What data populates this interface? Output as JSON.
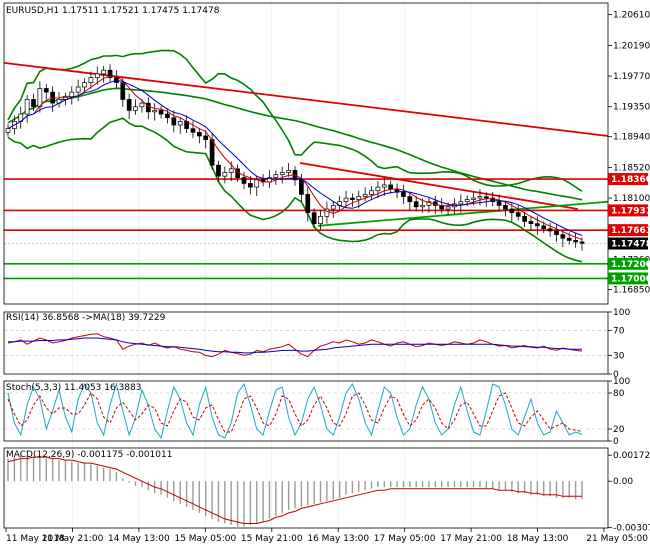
{
  "chart_data": [
    {
      "type": "candlestick",
      "panel": "price",
      "title": "EURUSD,H1  1.17511 1.17521 1.17475 1.17478",
      "ylim": [
        1.1665,
        1.2077
      ],
      "y_ticks": [
        "1.20610",
        "1.20190",
        "1.19770",
        "1.19350",
        "1.18940",
        "1.18520",
        "1.18100",
        "1.17680",
        "1.17260",
        "1.16850"
      ],
      "y_tick_values": [
        1.2061,
        1.2019,
        1.1977,
        1.1935,
        1.1894,
        1.1852,
        1.181,
        1.1768,
        1.1726,
        1.1685
      ],
      "current_price": {
        "label": "1.17478",
        "value": 1.17478,
        "color": "#000000"
      },
      "horizontal_levels": [
        {
          "label": "1.18360",
          "value": 1.1836,
          "color": "#e00000"
        },
        {
          "label": "1.17931",
          "value": 1.17931,
          "color": "#e00000"
        },
        {
          "label": "1.17661",
          "value": 1.17661,
          "color": "#e00000"
        },
        {
          "label": "1.17200",
          "value": 1.172,
          "color": "#00a000"
        },
        {
          "label": "1.17000",
          "value": 1.17,
          "color": "#00a000"
        }
      ],
      "close_series": [
        1.1905,
        1.1915,
        1.1925,
        1.1945,
        1.1935,
        1.196,
        1.1955,
        1.194,
        1.1945,
        1.1948,
        1.1955,
        1.1962,
        1.1968,
        1.1975,
        1.198,
        1.1985,
        1.1975,
        1.1968,
        1.1945,
        1.193,
        1.1935,
        1.194,
        1.1928,
        1.193,
        1.1925,
        1.192,
        1.191,
        1.1915,
        1.1905,
        1.19,
        1.1895,
        1.189,
        1.1855,
        1.184,
        1.1845,
        1.185,
        1.1838,
        1.183,
        1.1825,
        1.1835,
        1.1832,
        1.1838,
        1.1842,
        1.1845,
        1.1848,
        1.1835,
        1.1815,
        1.179,
        1.1775,
        1.1785,
        1.1795,
        1.18,
        1.1805,
        1.181,
        1.1808,
        1.1812,
        1.1815,
        1.182,
        1.1825,
        1.1828,
        1.1822,
        1.1818,
        1.1812,
        1.1805,
        1.1798,
        1.18,
        1.1805,
        1.18,
        1.1795,
        1.1798,
        1.1802,
        1.1805,
        1.1808,
        1.181,
        1.1812,
        1.181,
        1.1805,
        1.18,
        1.1795,
        1.179,
        1.1785,
        1.1778,
        1.1775,
        1.1772,
        1.1768,
        1.1765,
        1.176,
        1.1755,
        1.1752,
        1.175,
        1.1748
      ],
      "x_ticks": [
        "11 May 2018",
        "11 May 21:00",
        "14 May 13:00",
        "15 May 05:00",
        "15 May 21:00",
        "16 May 13:00",
        "17 May 05:00",
        "17 May 21:00",
        "18 May 13:00",
        "21 May 05:00"
      ],
      "trend_lines": [
        {
          "from": [
            0,
            1.1995
          ],
          "to": [
            1,
            1.1895
          ],
          "color": "#e00000"
        },
        {
          "from": [
            0.49,
            1.1858
          ],
          "to": [
            0.95,
            1.1795
          ],
          "color": "#e00000"
        },
        {
          "from": [
            0.52,
            1.1772
          ],
          "to": [
            1,
            1.1805
          ],
          "color": "#00a000"
        }
      ]
    },
    {
      "type": "line",
      "panel": "rsi",
      "title": "RSI(14) 36.8568  ->MA(18) 39.7229",
      "ylim": [
        0,
        100
      ],
      "y_ticks": [
        "100",
        "70",
        "30",
        "0"
      ],
      "y_tick_values": [
        100,
        70,
        30,
        0
      ],
      "series": [
        {
          "name": "RSI(14)",
          "color": "#c00000",
          "values": [
            50,
            52,
            55,
            48,
            53,
            58,
            55,
            50,
            52,
            54,
            58,
            60,
            62,
            64,
            65,
            60,
            58,
            55,
            40,
            45,
            48,
            50,
            46,
            50,
            45,
            42,
            44,
            40,
            38,
            36,
            35,
            30,
            28,
            32,
            38,
            35,
            33,
            30,
            32,
            38,
            36,
            40,
            42,
            44,
            48,
            40,
            32,
            28,
            38,
            45,
            48,
            52,
            50,
            55,
            52,
            48,
            50,
            55,
            52,
            48,
            45,
            50,
            52,
            48,
            44,
            46,
            50,
            48,
            46,
            48,
            52,
            50,
            48,
            50,
            55,
            52,
            48,
            45,
            46,
            42,
            44,
            46,
            43,
            42,
            45,
            40,
            38,
            42,
            40,
            38,
            37
          ]
        },
        {
          "name": "MA(18)",
          "color": "#0000c0",
          "values": [
            52,
            52,
            53,
            53,
            53,
            54,
            54,
            54,
            55,
            55,
            56,
            57,
            58,
            58,
            58,
            57,
            56,
            55,
            52,
            50,
            49,
            48,
            47,
            46,
            45,
            44,
            44,
            43,
            42,
            41,
            40,
            38,
            37,
            36,
            36,
            35,
            35,
            34,
            34,
            35,
            35,
            36,
            37,
            38,
            38,
            38,
            37,
            37,
            38,
            39,
            40,
            42,
            43,
            44,
            45,
            46,
            47,
            48,
            48,
            48,
            48,
            48,
            48,
            48,
            48,
            48,
            48,
            48,
            48,
            48,
            48,
            48,
            48,
            48,
            48,
            48,
            48,
            47,
            46,
            45,
            45,
            44,
            44,
            43,
            43,
            42,
            41,
            41,
            40,
            40,
            40
          ]
        }
      ]
    },
    {
      "type": "line",
      "panel": "stochastic",
      "title": "Stoch(5,3,3) 11.4053 16.3883",
      "ylim": [
        0,
        100
      ],
      "y_ticks": [
        "100",
        "80",
        "20",
        "0"
      ],
      "y_tick_values": [
        100,
        80,
        20,
        0
      ],
      "series": [
        {
          "name": "Stoch main",
          "color": "#1aa7c9",
          "values": [
            80,
            30,
            10,
            60,
            90,
            70,
            20,
            50,
            85,
            40,
            15,
            70,
            95,
            80,
            30,
            10,
            60,
            95,
            50,
            10,
            40,
            85,
            60,
            20,
            5,
            50,
            90,
            70,
            30,
            10,
            60,
            90,
            40,
            10,
            5,
            30,
            80,
            95,
            60,
            20,
            10,
            50,
            85,
            90,
            40,
            10,
            30,
            70,
            90,
            60,
            20,
            10,
            40,
            80,
            95,
            70,
            30,
            10,
            50,
            90,
            80,
            40,
            10,
            20,
            60,
            90,
            70,
            30,
            10,
            20,
            60,
            90,
            50,
            15,
            10,
            50,
            95,
            90,
            60,
            20,
            10,
            40,
            70,
            30,
            10,
            15,
            50,
            30,
            10,
            15,
            11
          ]
        },
        {
          "name": "Stoch signal",
          "color": "#c00000",
          "values": [
            70,
            45,
            25,
            35,
            60,
            75,
            55,
            45,
            55,
            55,
            45,
            45,
            60,
            80,
            70,
            40,
            30,
            55,
            65,
            50,
            35,
            45,
            60,
            55,
            30,
            25,
            50,
            70,
            65,
            40,
            35,
            55,
            60,
            35,
            15,
            15,
            40,
            70,
            75,
            55,
            30,
            25,
            45,
            75,
            70,
            45,
            25,
            35,
            60,
            75,
            55,
            30,
            25,
            45,
            75,
            80,
            60,
            35,
            30,
            55,
            75,
            70,
            45,
            25,
            35,
            60,
            70,
            55,
            30,
            20,
            35,
            60,
            65,
            45,
            25,
            25,
            50,
            75,
            80,
            55,
            30,
            25,
            40,
            50,
            35,
            20,
            25,
            30,
            20,
            18,
            16
          ]
        }
      ]
    },
    {
      "type": "bar",
      "panel": "macd",
      "title": "MACD(12,26,9) -0.001175 -0.001011",
      "ylim": [
        -0.0031,
        0.0022
      ],
      "y_ticks": [
        "0.001725",
        "0.00",
        "-0.003077"
      ],
      "y_tick_values": [
        0.001725,
        0,
        -0.003077
      ],
      "histogram_color": "#9a9a9a",
      "histogram": [
        0.0015,
        0.0016,
        0.0017,
        0.0017,
        0.0016,
        0.0016,
        0.0015,
        0.0015,
        0.0014,
        0.0014,
        0.0013,
        0.0012,
        0.0012,
        0.0011,
        0.001,
        0.0009,
        0.0008,
        0.0006,
        0.0002,
        -0.0001,
        -0.0003,
        -0.0004,
        -0.0006,
        -0.0008,
        -0.0009,
        -0.0011,
        -0.0013,
        -0.0015,
        -0.0017,
        -0.0019,
        -0.0021,
        -0.0023,
        -0.0025,
        -0.0027,
        -0.0028,
        -0.0029,
        -0.003,
        -0.003,
        -0.0029,
        -0.0028,
        -0.0027,
        -0.0025,
        -0.0023,
        -0.0021,
        -0.0019,
        -0.0018,
        -0.0017,
        -0.0016,
        -0.0015,
        -0.0014,
        -0.0013,
        -0.0012,
        -0.0011,
        -0.0009,
        -0.0008,
        -0.0007,
        -0.0006,
        -0.0005,
        -0.0004,
        -0.0004,
        -0.0004,
        -0.0004,
        -0.0004,
        -0.0004,
        -0.0004,
        -0.0004,
        -0.0004,
        -0.0004,
        -0.0004,
        -0.0004,
        -0.0004,
        -0.0004,
        -0.0004,
        -0.0004,
        -0.0004,
        -0.0005,
        -0.0005,
        -0.0006,
        -0.0006,
        -0.0007,
        -0.0008,
        -0.0008,
        -0.0009,
        -0.0009,
        -0.001,
        -0.001,
        -0.0011,
        -0.0011,
        -0.0011,
        -0.0012,
        -0.0012
      ],
      "signal_color": "#c00000",
      "signal": [
        0.0013,
        0.0014,
        0.0015,
        0.0015,
        0.0016,
        0.0016,
        0.0016,
        0.0015,
        0.0015,
        0.0014,
        0.0014,
        0.0013,
        0.0012,
        0.0012,
        0.0011,
        0.001,
        0.0009,
        0.0008,
        0.0006,
        0.0004,
        0.0002,
        0.0,
        -0.0002,
        -0.0004,
        -0.0005,
        -0.0007,
        -0.0009,
        -0.0011,
        -0.0013,
        -0.0015,
        -0.0017,
        -0.0019,
        -0.0021,
        -0.0023,
        -0.0025,
        -0.0026,
        -0.0027,
        -0.0028,
        -0.0028,
        -0.0028,
        -0.0027,
        -0.0026,
        -0.0024,
        -0.0023,
        -0.0021,
        -0.002,
        -0.0018,
        -0.0017,
        -0.0016,
        -0.0015,
        -0.0014,
        -0.0013,
        -0.0012,
        -0.0011,
        -0.001,
        -0.0009,
        -0.0008,
        -0.0007,
        -0.0006,
        -0.0006,
        -0.0005,
        -0.0005,
        -0.0005,
        -0.0005,
        -0.0005,
        -0.0005,
        -0.0005,
        -0.0005,
        -0.0005,
        -0.0005,
        -0.0005,
        -0.0005,
        -0.0005,
        -0.0005,
        -0.0005,
        -0.0005,
        -0.0005,
        -0.0006,
        -0.0006,
        -0.0006,
        -0.0007,
        -0.0007,
        -0.0008,
        -0.0008,
        -0.0009,
        -0.0009,
        -0.0009,
        -0.001,
        -0.001,
        -0.001,
        -0.001
      ]
    }
  ]
}
